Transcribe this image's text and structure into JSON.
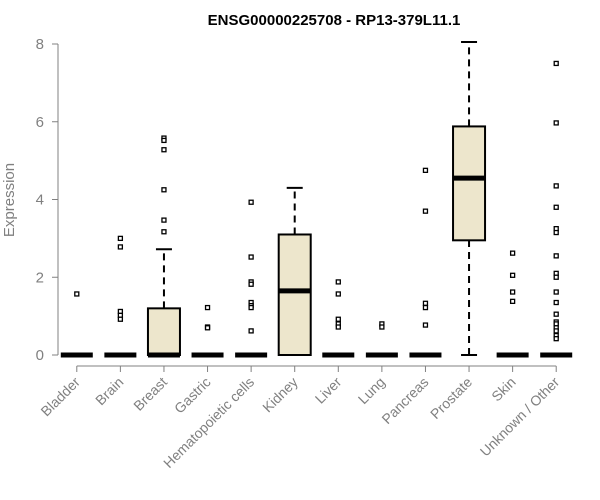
{
  "chart_data": {
    "type": "box",
    "title": "ENSG00000225708 - RP13-379L11.1",
    "xlabel": "",
    "ylabel": "Expression",
    "ylim": [
      0,
      8
    ],
    "yticks": [
      0,
      2,
      4,
      6,
      8
    ],
    "grid": false,
    "box_fill": "#ede6cc",
    "box_stroke": "#000000",
    "categories": [
      "Bladder",
      "Brain",
      "Breast",
      "Gastric",
      "Hematopoietic cells",
      "Kidney",
      "Liver",
      "Lung",
      "Pancreas",
      "Prostate",
      "Skin",
      "Unknown / Other"
    ],
    "boxes": [
      {
        "q1": 0,
        "median": 0,
        "q3": 0,
        "whisker_low": 0,
        "whisker_high": 0,
        "outliers": [
          1.57
        ]
      },
      {
        "q1": 0,
        "median": 0,
        "q3": 0,
        "whisker_low": 0,
        "whisker_high": 0,
        "outliers": [
          3.0,
          2.78,
          1.12,
          1.02,
          0.92
        ]
      },
      {
        "q1": 0,
        "median": 0,
        "q3": 1.2,
        "whisker_low": 0,
        "whisker_high": 2.72,
        "outliers": [
          5.58,
          5.52,
          5.28,
          4.25,
          3.47,
          3.17
        ]
      },
      {
        "q1": 0,
        "median": 0,
        "q3": 0,
        "whisker_low": 0,
        "whisker_high": 0,
        "outliers": [
          1.22,
          0.72,
          0.7
        ]
      },
      {
        "q1": 0,
        "median": 0,
        "q3": 0,
        "whisker_low": 0,
        "whisker_high": 0,
        "outliers": [
          3.93,
          2.52,
          1.88,
          1.82,
          1.35,
          1.27,
          1.22,
          0.62
        ]
      },
      {
        "q1": 0,
        "median": 1.65,
        "q3": 3.1,
        "whisker_low": 0,
        "whisker_high": 4.3,
        "outliers": []
      },
      {
        "q1": 0,
        "median": 0,
        "q3": 0,
        "whisker_low": 0,
        "whisker_high": 0,
        "outliers": [
          1.88,
          1.57,
          0.92,
          0.8,
          0.72
        ]
      },
      {
        "q1": 0,
        "median": 0,
        "q3": 0,
        "whisker_low": 0,
        "whisker_high": 0,
        "outliers": [
          0.8,
          0.72
        ]
      },
      {
        "q1": 0,
        "median": 0,
        "q3": 0,
        "whisker_low": 0,
        "whisker_high": 0,
        "outliers": [
          4.75,
          3.7,
          1.33,
          1.22,
          0.77
        ]
      },
      {
        "q1": 2.95,
        "median": 4.55,
        "q3": 5.88,
        "whisker_low": 0,
        "whisker_high": 8.05,
        "outliers": []
      },
      {
        "q1": 0,
        "median": 0,
        "q3": 0,
        "whisker_low": 0,
        "whisker_high": 0,
        "outliers": [
          2.62,
          2.05,
          1.62,
          1.38
        ]
      },
      {
        "q1": 0,
        "median": 0,
        "q3": 0,
        "whisker_low": 0,
        "whisker_high": 0,
        "outliers": [
          7.5,
          5.97,
          4.35,
          3.8,
          3.25,
          3.15,
          2.55,
          2.1,
          2.0,
          1.62,
          1.35,
          1.05,
          0.85,
          0.8,
          0.7,
          0.62,
          0.5,
          0.42
        ]
      }
    ]
  }
}
